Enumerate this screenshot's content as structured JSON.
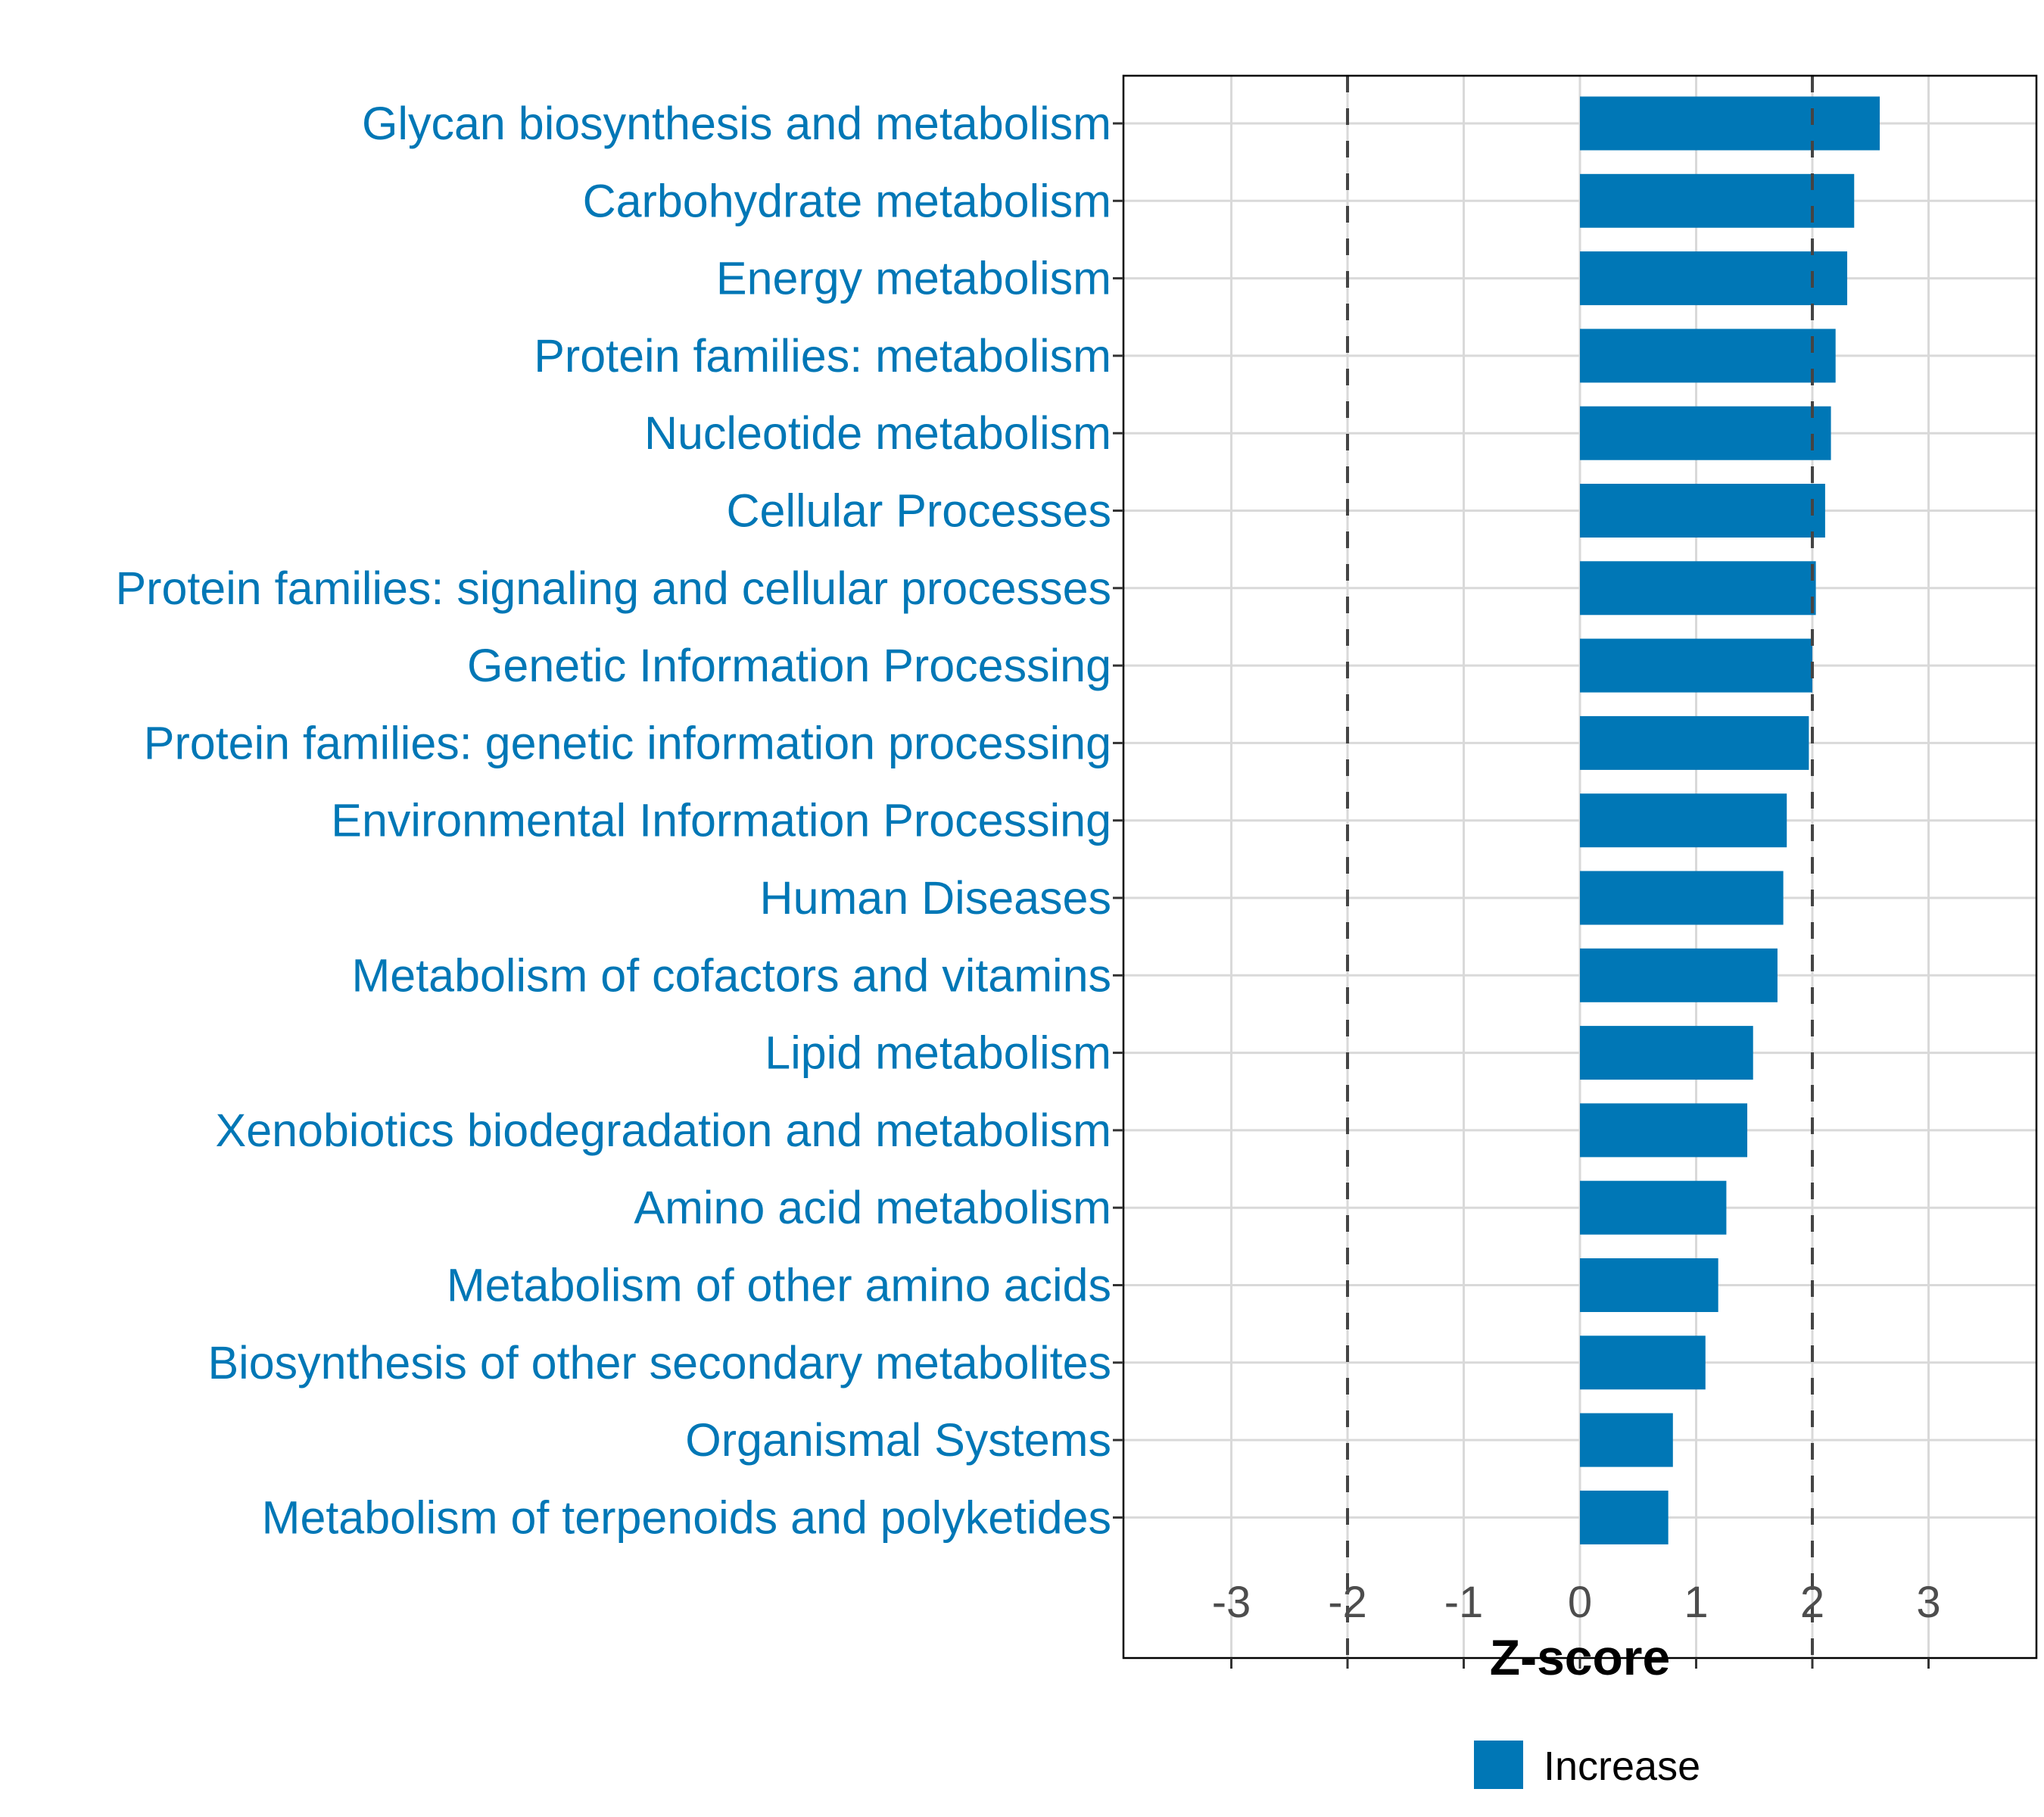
{
  "chart_data": {
    "type": "bar",
    "orientation": "horizontal",
    "title": "",
    "xlabel": "Z-score",
    "ylabel": "",
    "xlim": [
      -3.95,
      3.95
    ],
    "xticks": [
      -3,
      -2,
      -1,
      0,
      1,
      2,
      3
    ],
    "xtick_labels": [
      "-3",
      "-2",
      "-1",
      "0",
      "1",
      "2",
      "3"
    ],
    "reference_lines": [
      -2,
      2
    ],
    "grid": true,
    "bar_color": "#0077B6",
    "label_color": "#0077B6",
    "categories": [
      "Glycan biosynthesis and metabolism",
      "Carbohydrate metabolism",
      "Energy metabolism",
      "Protein families: metabolism",
      "Nucleotide metabolism",
      "Cellular Processes",
      "Protein families: signaling and cellular processes",
      "Genetic Information Processing",
      "Protein families: genetic information processing",
      "Environmental Information Processing",
      "Human Diseases",
      "Metabolism of cofactors and vitamins",
      "Lipid metabolism",
      "Xenobiotics biodegradation and metabolism",
      "Amino acid metabolism",
      "Metabolism of other amino acids",
      "Biosynthesis of other secondary metabolites",
      "Organismal Systems",
      "Metabolism of terpenoids and polyketides"
    ],
    "values": [
      2.58,
      2.36,
      2.3,
      2.2,
      2.16,
      2.11,
      2.03,
      2.0,
      1.97,
      1.78,
      1.75,
      1.7,
      1.49,
      1.44,
      1.26,
      1.19,
      1.08,
      0.8,
      0.76
    ],
    "legend": {
      "position": "bottom",
      "entries": [
        {
          "label": "Increase",
          "color": "#0077B6"
        }
      ]
    }
  }
}
